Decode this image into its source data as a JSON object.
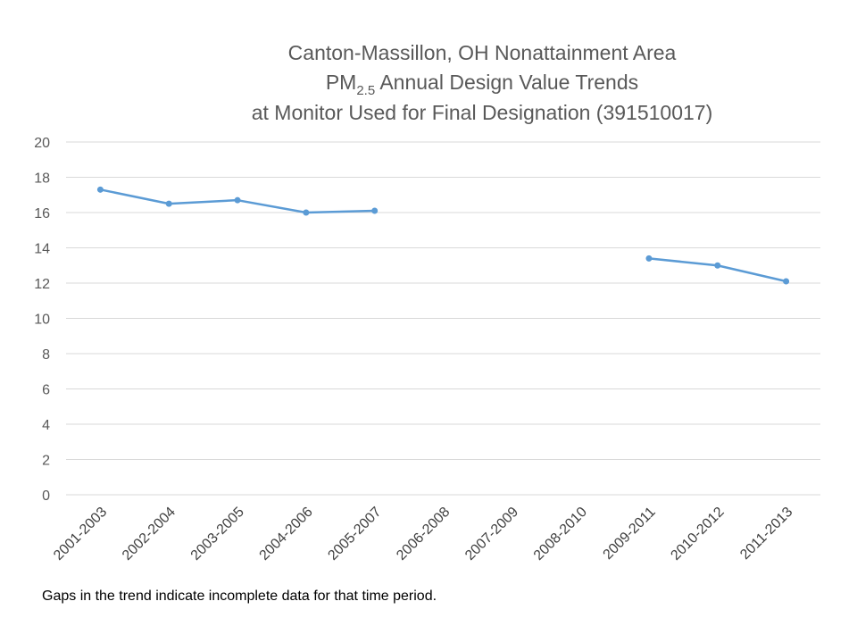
{
  "chart_data": {
    "type": "line",
    "title_lines": {
      "line1": "Canton-Massillon, OH Nonattainment Area",
      "line2_prefix": "PM",
      "line2_subscript": "2.5",
      "line2_suffix": " Annual Design Value Trends",
      "line3": "at Monitor Used for Final Designation (391510017)"
    },
    "categories": [
      "2001-2003",
      "2002-2004",
      "2003-2005",
      "2004-2006",
      "2005-2007",
      "2006-2008",
      "2007-2009",
      "2008-2010",
      "2009-2011",
      "2010-2012",
      "2011-2013"
    ],
    "series": [
      {
        "values": [
          17.3,
          16.5,
          16.7,
          16.0,
          16.1,
          null,
          null,
          null,
          13.4,
          13.0,
          12.1
        ]
      }
    ],
    "ylim": [
      0,
      20
    ],
    "yticks": [
      0,
      2,
      4,
      6,
      8,
      10,
      12,
      14,
      16,
      18,
      20
    ],
    "grid": true,
    "line_color": "#5b9bd5",
    "grid_color": "#d9d9d9"
  },
  "footnote": "Gaps in the trend indicate incomplete data for that time period."
}
